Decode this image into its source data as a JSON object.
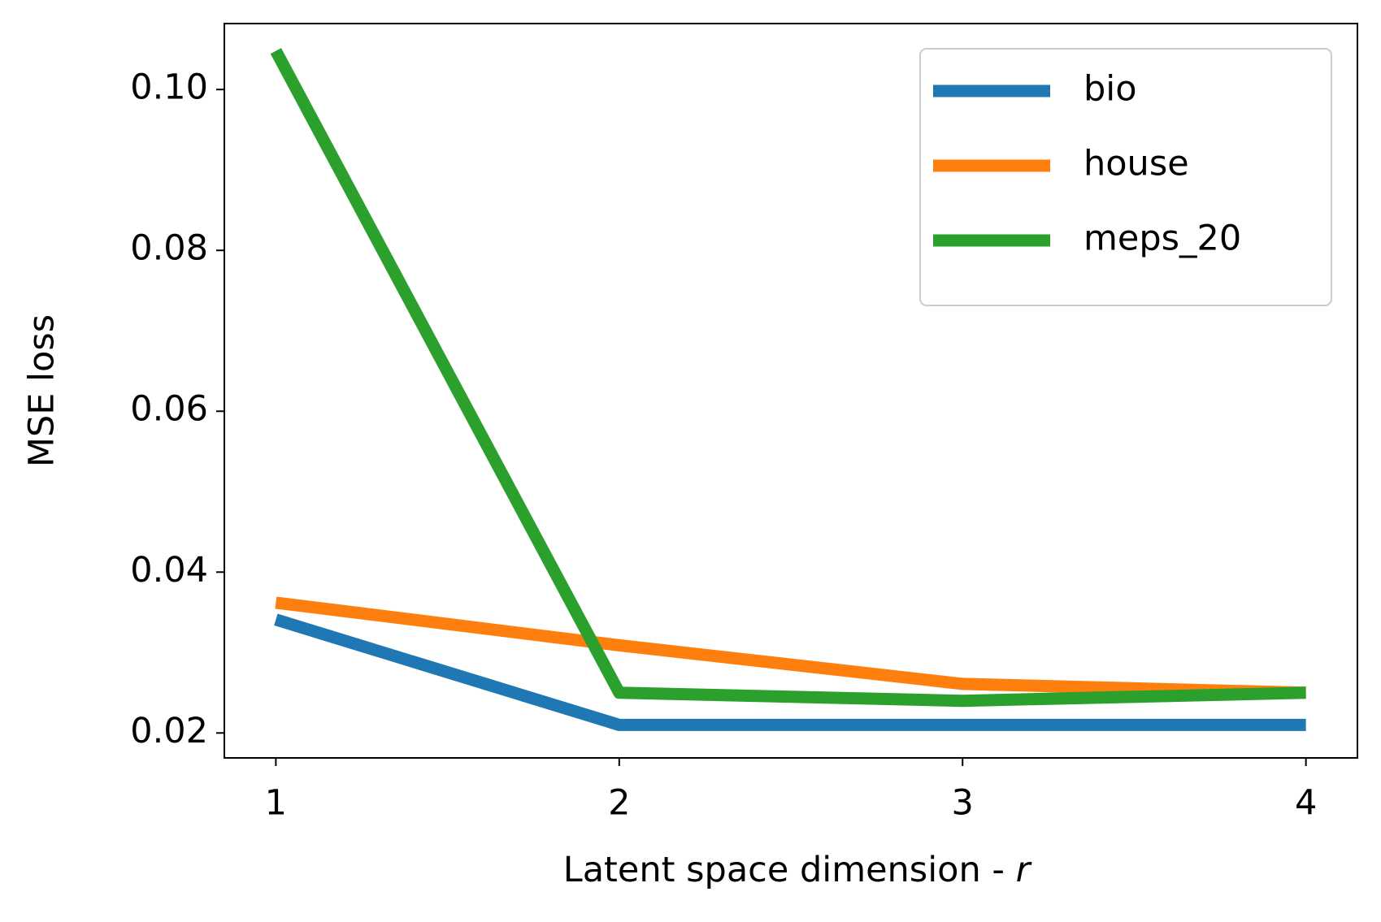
{
  "chart_data": {
    "type": "line",
    "xlabel": [
      "Latent space dimension - ",
      "r"
    ],
    "ylabel": "MSE loss",
    "x": [
      1,
      2,
      3,
      4
    ],
    "series": [
      {
        "name": "bio",
        "color": "#1f77b4",
        "values": [
          0.0341,
          0.021,
          0.021,
          0.021
        ]
      },
      {
        "name": "house",
        "color": "#ff7f0e",
        "values": [
          0.0362,
          0.0309,
          0.0261,
          0.025
        ]
      },
      {
        "name": "meps_20",
        "color": "#2ca02c",
        "values": [
          0.1048,
          0.025,
          0.024,
          0.025
        ]
      }
    ],
    "xlim": [
      0.85,
      4.15
    ],
    "xticks": [
      1,
      2,
      3,
      4
    ],
    "ylim": [
      0.0169,
      0.1082
    ],
    "yticks": [
      {
        "value": 0.02,
        "label": "0.02"
      },
      {
        "value": 0.04,
        "label": "0.04"
      },
      {
        "value": 0.06,
        "label": "0.06"
      },
      {
        "value": 0.08,
        "label": "0.08"
      },
      {
        "value": 0.1,
        "label": "0.10"
      }
    ],
    "legend": "upper right",
    "grid": false
  }
}
